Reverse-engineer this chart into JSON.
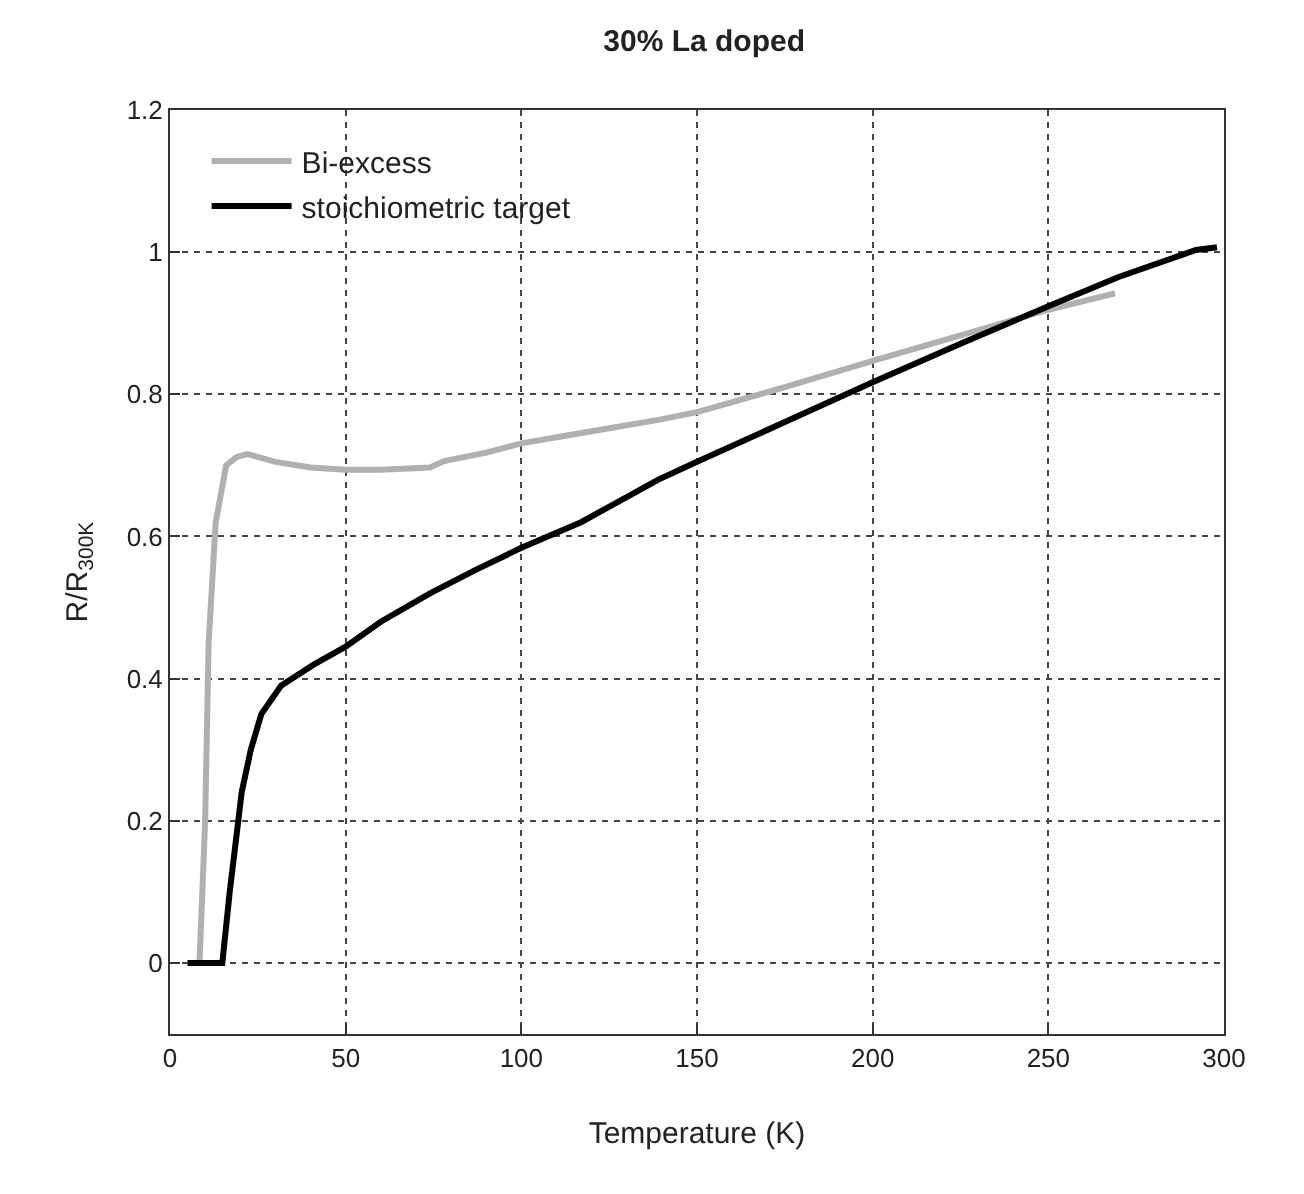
{
  "chart_data": {
    "type": "line",
    "title": "30% La doped",
    "xlabel": "Temperature (K)",
    "ylabel": "R/R$_{300K}$",
    "xlim": [
      0,
      300
    ],
    "xticks": [
      0,
      50,
      100,
      150,
      200,
      250,
      300
    ],
    "ylim": [
      -0.1,
      1.2
    ],
    "yticks": [
      0,
      0.2,
      0.4,
      0.6,
      0.8,
      1,
      1.2
    ],
    "grid": true,
    "legend": "top left",
    "line_style": "solid",
    "marker": "none",
    "series": [
      {
        "name": "Bi-excess",
        "color": "#b0b0b0",
        "x": [
          5,
          8.4,
          10,
          11,
          13,
          16,
          19,
          22,
          30,
          40,
          50,
          60,
          74,
          78,
          90,
          100,
          120,
          139,
          150,
          175,
          200,
          225,
          250,
          269
        ],
        "values": [
          0,
          0,
          0.2,
          0.45,
          0.62,
          0.7,
          0.712,
          0.716,
          0.705,
          0.697,
          0.694,
          0.694,
          0.697,
          0.706,
          0.718,
          0.731,
          0.748,
          0.764,
          0.775,
          0.81,
          0.847,
          0.883,
          0.919,
          0.942
        ]
      },
      {
        "name": "stoichiometric target",
        "color": "#000000",
        "x": [
          5,
          14.9,
          17,
          20.4,
          23,
          26,
          31.6,
          41,
          50,
          60,
          74,
          87,
          100,
          117,
          139,
          150,
          175,
          200,
          225,
          250,
          270,
          292,
          298
        ],
        "values": [
          0,
          0,
          0.1,
          0.24,
          0.3,
          0.35,
          0.39,
          0.42,
          0.445,
          0.48,
          0.52,
          0.553,
          0.584,
          0.62,
          0.68,
          0.705,
          0.761,
          0.817,
          0.871,
          0.924,
          0.965,
          1.003,
          1.007
        ]
      }
    ]
  }
}
